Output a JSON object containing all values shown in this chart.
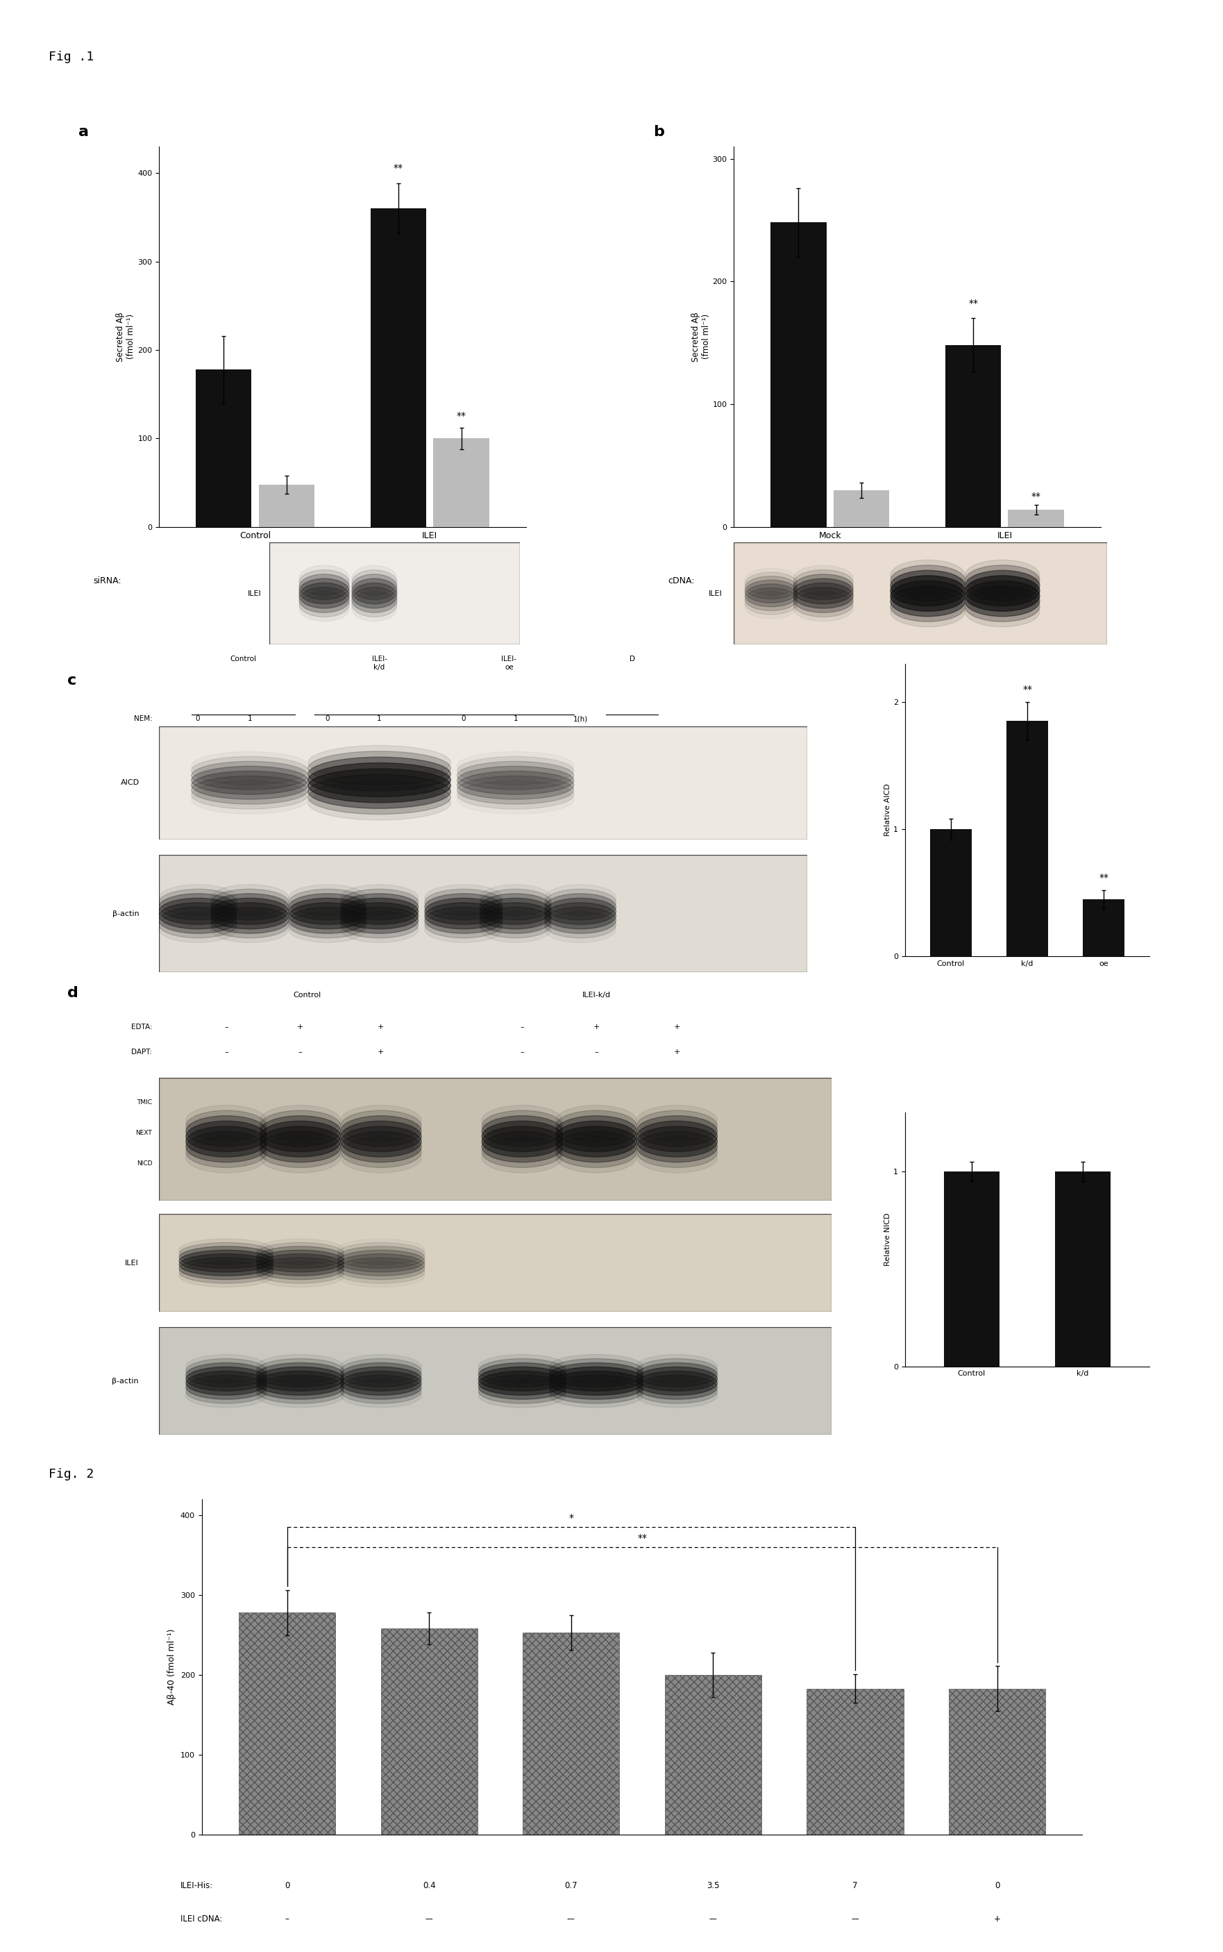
{
  "fig1_label": "Fig .1",
  "fig2_label": "Fig. 2",
  "panel_a": {
    "label": "a",
    "ylabel": "Secreted Aβ\n(fmol ml⁻¹)",
    "ylim": [
      0,
      430
    ],
    "yticks": [
      0,
      100,
      200,
      300,
      400
    ],
    "groups": [
      "Control",
      "ILEI"
    ],
    "xlabel_prefix": "siRNA:",
    "bar1_values": [
      178,
      360
    ],
    "bar2_values": [
      48,
      100
    ],
    "bar1_errors": [
      38,
      28
    ],
    "bar2_errors": [
      10,
      12
    ],
    "bar1_color": "#111111",
    "bar2_color": "#bbbbbb",
    "blot_label": "ILEI"
  },
  "panel_b": {
    "label": "b",
    "ylabel": "Secreted Aβ\n(fmol ml⁻¹)",
    "ylim": [
      0,
      310
    ],
    "yticks": [
      0,
      100,
      200,
      300
    ],
    "groups": [
      "Mock",
      "ILEI"
    ],
    "xlabel_prefix": "cDNA:",
    "bar1_values": [
      248,
      148
    ],
    "bar2_values": [
      30,
      14
    ],
    "bar1_errors": [
      28,
      22
    ],
    "bar2_errors": [
      6,
      4
    ],
    "bar1_color": "#111111",
    "bar2_color": "#bbbbbb",
    "blot_label": "ILEI"
  },
  "panel_c_bar": {
    "ylabel": "Relative AICD",
    "ylim": [
      0,
      2.3
    ],
    "yticks": [
      0,
      1,
      2
    ],
    "groups": [
      "Control",
      "k/d",
      "oe"
    ],
    "values": [
      1.0,
      1.85,
      0.45
    ],
    "errors": [
      0.08,
      0.15,
      0.07
    ],
    "bar_color": "#111111"
  },
  "panel_d_bar": {
    "ylabel": "Relative NICD",
    "ylim": [
      0,
      1.3
    ],
    "yticks": [
      0,
      1
    ],
    "groups": [
      "Control",
      "k/d"
    ],
    "values": [
      1.0,
      1.0
    ],
    "errors": [
      0.05,
      0.05
    ],
    "bar_color": "#111111"
  },
  "fig2_bar": {
    "ylabel": "Aβ-40 (fmol ml⁻¹)",
    "ylim": [
      0,
      420
    ],
    "yticks": [
      0,
      100,
      200,
      300,
      400
    ],
    "groups": [
      "0",
      "0.4",
      "0.7",
      "3.5",
      "7",
      "0"
    ],
    "values": [
      278,
      258,
      253,
      200,
      183,
      183
    ],
    "errors": [
      28,
      20,
      22,
      28,
      18,
      28
    ],
    "bar_color": "#888888",
    "xlabel1": "ILEI-His:",
    "xlabel2": "ILEI cDNA:",
    "xticklabels1": [
      "0",
      "0.4",
      "0.7",
      "3.5",
      "7",
      "0"
    ],
    "xticklabels2": [
      "–",
      "––",
      "––",
      "––",
      "––",
      "+"
    ],
    "sig_star1": "*",
    "sig_star2": "**"
  },
  "background_color": "#ffffff"
}
